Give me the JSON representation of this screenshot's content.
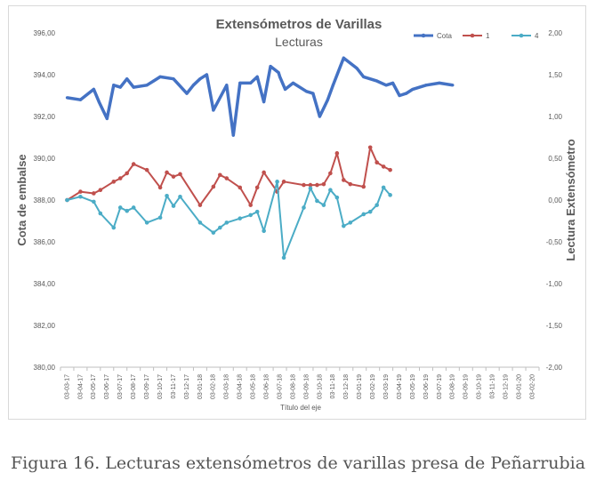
{
  "caption": "Figura 16. Lecturas extensómetros de varillas presa de Peñarrubia",
  "chart_data": {
    "type": "line",
    "title": "Extensómetros de Varillas",
    "subtitle": "Lecturas",
    "xlabel": "Título del eje",
    "ylabel": "Cota de embalse",
    "y2label": "Lectura Extensómetro",
    "ylim": [
      380,
      396
    ],
    "y_ticks": [
      "380,00",
      "382,00",
      "384,00",
      "386,00",
      "388,00",
      "390,00",
      "392,00",
      "394,00",
      "396,00"
    ],
    "y2lim": [
      -2,
      2
    ],
    "y2_ticks": [
      "-2,00",
      "-1,50",
      "-1,00",
      "-0,50",
      "0,00",
      "0,50",
      "1,00",
      "1,50",
      "2,00"
    ],
    "grid": false,
    "legend_position": "top-right",
    "categories": [
      "03-03-17",
      "03-04-17",
      "03-05-17",
      "03-06-17",
      "03-07-17",
      "03-08-17",
      "03-09-17",
      "03-10-17",
      "03-11-17",
      "03-12-17",
      "03-01-18",
      "03-02-18",
      "03-03-18",
      "03-04-18",
      "03-05-18",
      "03-06-18",
      "03-07-18",
      "03-08-18",
      "03-09-18",
      "03-10-18",
      "03-11-18",
      "03-12-18",
      "03-01-19",
      "03-02-19",
      "03-03-19",
      "03-04-19",
      "03-05-19",
      "03-06-19",
      "03-07-19",
      "03-08-19",
      "03-09-19",
      "03-10-19",
      "03-11-19",
      "03-12-19",
      "03-01-20",
      "03-02-20"
    ],
    "series": [
      {
        "name": "Cota",
        "axis": "left",
        "color": "#4472c4",
        "x": [
          0,
          1,
          2,
          2.4,
          3,
          3.5,
          4,
          4.5,
          5,
          6,
          6.5,
          7,
          8,
          9,
          9.5,
          10,
          10.5,
          11,
          12,
          12.5,
          13,
          13.8,
          14.3,
          14.8,
          15.3,
          15.9,
          16,
          16.4,
          17,
          18,
          18.5,
          19,
          19.6,
          20,
          20.8,
          21.8,
          22.3,
          23.3,
          24,
          24.5,
          25,
          25.5,
          26,
          27,
          28,
          29
        ],
        "y": [
          392.9,
          392.8,
          393.3,
          392.7,
          391.9,
          393.5,
          393.4,
          393.8,
          393.4,
          393.5,
          393.7,
          393.9,
          393.8,
          393.1,
          393.5,
          393.8,
          394.0,
          392.3,
          393.5,
          391.1,
          393.6,
          393.6,
          393.9,
          392.7,
          394.4,
          394.1,
          393.9,
          393.3,
          393.6,
          393.2,
          393.1,
          392.0,
          392.8,
          393.5,
          394.8,
          394.3,
          393.9,
          393.7,
          393.5,
          393.6,
          393.0,
          393.1,
          393.3,
          393.5,
          393.6,
          393.5
        ]
      },
      {
        "name": "1",
        "axis": "right",
        "color": "#c0504d",
        "x": [
          0,
          1,
          2,
          2.5,
          3.5,
          4,
          4.5,
          5,
          6,
          7,
          7.5,
          8,
          8.5,
          10,
          11,
          11.5,
          12,
          13,
          13.8,
          14.3,
          14.8,
          15.8,
          16.3,
          17.8,
          18.3,
          18.8,
          19.3,
          19.8,
          20.3,
          20.8,
          21.3,
          22.3,
          22.8,
          23.3,
          23.8,
          24.3
        ],
        "y": [
          0.0,
          0.1,
          0.08,
          0.12,
          0.22,
          0.26,
          0.32,
          0.43,
          0.36,
          0.15,
          0.33,
          0.28,
          0.31,
          -0.06,
          0.16,
          0.3,
          0.26,
          0.15,
          -0.06,
          0.15,
          0.33,
          0.1,
          0.22,
          0.18,
          0.18,
          0.18,
          0.19,
          0.32,
          0.56,
          0.24,
          0.19,
          0.16,
          0.63,
          0.45,
          0.4,
          0.36
        ]
      },
      {
        "name": "4",
        "axis": "right",
        "color": "#4bacc6",
        "x": [
          0,
          1,
          2,
          2.5,
          3.5,
          4,
          4.5,
          5,
          6,
          7,
          7.5,
          8,
          8.5,
          10,
          11,
          11.5,
          12,
          13,
          13.8,
          14.3,
          14.8,
          15.8,
          16.3,
          17.8,
          18.3,
          18.8,
          19.3,
          19.8,
          20.3,
          20.8,
          21.3,
          22.3,
          22.8,
          23.3,
          23.8,
          24.3
        ],
        "y": [
          0.0,
          0.04,
          -0.02,
          -0.16,
          -0.33,
          -0.09,
          -0.13,
          -0.09,
          -0.27,
          -0.21,
          0.05,
          -0.07,
          0.04,
          -0.27,
          -0.39,
          -0.33,
          -0.27,
          -0.22,
          -0.18,
          -0.14,
          -0.37,
          0.22,
          -0.69,
          -0.09,
          0.14,
          -0.01,
          -0.06,
          0.12,
          0.03,
          -0.31,
          -0.27,
          -0.17,
          -0.14,
          -0.06,
          0.15,
          0.06
        ]
      }
    ]
  }
}
